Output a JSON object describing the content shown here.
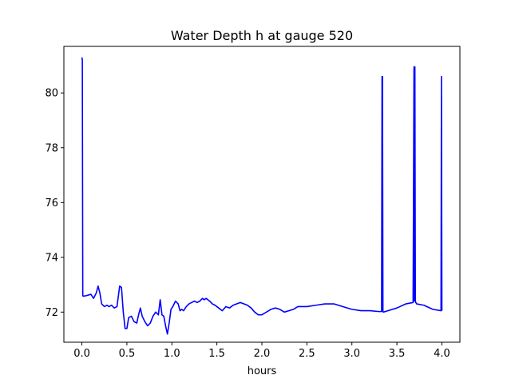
{
  "chart_data": {
    "type": "line",
    "title": "Water Depth h at gauge 520",
    "xlabel": "hours",
    "ylabel": "",
    "xlim": [
      -0.2,
      4.2
    ],
    "ylim": [
      70.9,
      81.7
    ],
    "grid": false,
    "legend": "none",
    "x_ticks": [
      {
        "value": 0.0,
        "label": "0.0"
      },
      {
        "value": 0.5,
        "label": "0.5"
      },
      {
        "value": 1.0,
        "label": "1.0"
      },
      {
        "value": 1.5,
        "label": "1.5"
      },
      {
        "value": 2.0,
        "label": "2.0"
      },
      {
        "value": 2.5,
        "label": "2.5"
      },
      {
        "value": 3.0,
        "label": "3.0"
      },
      {
        "value": 3.5,
        "label": "3.5"
      },
      {
        "value": 4.0,
        "label": "4.0"
      }
    ],
    "y_ticks": [
      {
        "value": 72,
        "label": "72"
      },
      {
        "value": 74,
        "label": "74"
      },
      {
        "value": 76,
        "label": "76"
      },
      {
        "value": 78,
        "label": "78"
      },
      {
        "value": 80,
        "label": "80"
      }
    ],
    "series": [
      {
        "color": "#0000ff",
        "x": [
          0.0,
          0.005,
          0.01,
          0.015,
          0.05,
          0.1,
          0.13,
          0.16,
          0.18,
          0.2,
          0.22,
          0.25,
          0.28,
          0.3,
          0.33,
          0.36,
          0.39,
          0.42,
          0.44,
          0.46,
          0.48,
          0.5,
          0.52,
          0.55,
          0.58,
          0.61,
          0.63,
          0.65,
          0.67,
          0.7,
          0.73,
          0.76,
          0.79,
          0.82,
          0.85,
          0.87,
          0.89,
          0.91,
          0.93,
          0.95,
          0.97,
          0.99,
          1.01,
          1.04,
          1.07,
          1.09,
          1.11,
          1.13,
          1.16,
          1.19,
          1.22,
          1.25,
          1.28,
          1.31,
          1.34,
          1.36,
          1.38,
          1.42,
          1.45,
          1.48,
          1.52,
          1.56,
          1.6,
          1.64,
          1.68,
          1.72,
          1.76,
          1.8,
          1.84,
          1.88,
          1.92,
          1.96,
          2.0,
          2.05,
          2.1,
          2.15,
          2.2,
          2.25,
          2.3,
          2.35,
          2.4,
          2.5,
          2.6,
          2.7,
          2.8,
          2.9,
          3.0,
          3.1,
          3.2,
          3.3,
          3.33,
          3.335,
          3.34,
          3.345,
          3.35,
          3.4,
          3.5,
          3.6,
          3.68,
          3.69,
          3.695,
          3.7,
          3.705,
          3.71,
          3.72,
          3.8,
          3.9,
          3.99,
          3.995,
          4.0
        ],
        "y": [
          81.3,
          81.2,
          72.6,
          72.58,
          72.6,
          72.65,
          72.5,
          72.7,
          72.95,
          72.7,
          72.3,
          72.2,
          72.25,
          72.2,
          72.25,
          72.15,
          72.2,
          72.95,
          72.9,
          72.0,
          71.4,
          71.4,
          71.8,
          71.85,
          71.65,
          71.6,
          71.9,
          72.15,
          71.85,
          71.65,
          71.5,
          71.6,
          71.85,
          72.0,
          71.9,
          72.45,
          71.9,
          71.85,
          71.5,
          71.2,
          71.6,
          72.1,
          72.2,
          72.4,
          72.3,
          72.05,
          72.1,
          72.05,
          72.2,
          72.3,
          72.35,
          72.4,
          72.35,
          72.4,
          72.5,
          72.45,
          72.5,
          72.4,
          72.3,
          72.25,
          72.15,
          72.05,
          72.2,
          72.15,
          72.25,
          72.3,
          72.35,
          72.3,
          72.25,
          72.15,
          72.0,
          71.9,
          71.9,
          72.0,
          72.1,
          72.15,
          72.1,
          72.0,
          72.05,
          72.1,
          72.2,
          72.2,
          72.25,
          72.3,
          72.3,
          72.2,
          72.1,
          72.05,
          72.05,
          72.02,
          72.02,
          80.6,
          80.6,
          72.02,
          72.0,
          72.05,
          72.15,
          72.3,
          72.35,
          80.95,
          72.4,
          80.95,
          72.4,
          72.35,
          72.3,
          72.25,
          72.1,
          72.05,
          80.6,
          72.05
        ]
      }
    ]
  }
}
